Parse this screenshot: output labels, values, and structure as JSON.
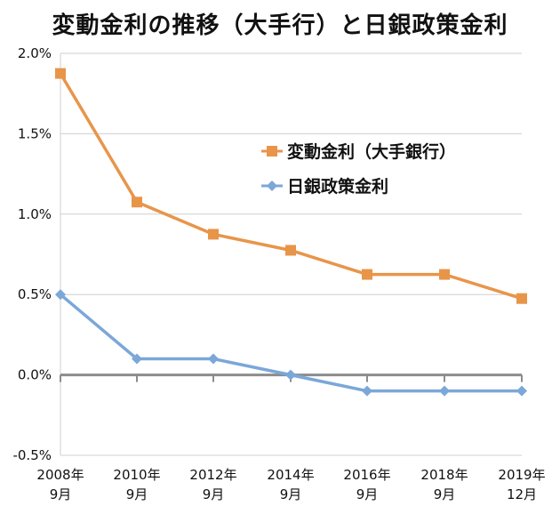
{
  "chart_data": {
    "type": "line",
    "title": "変動金利の推移（大手行）と日銀政策金利",
    "categories": [
      {
        "year": "2008年",
        "month": "9月"
      },
      {
        "year": "2010年",
        "month": "9月"
      },
      {
        "year": "2012年",
        "month": "9月"
      },
      {
        "year": "2014年",
        "month": "9月"
      },
      {
        "year": "2016年",
        "month": "9月"
      },
      {
        "year": "2018年",
        "month": "9月"
      },
      {
        "year": "2019年",
        "month": "12月"
      }
    ],
    "series": [
      {
        "name": "変動金利（大手銀行）",
        "values": [
          1.875,
          1.075,
          0.875,
          0.775,
          0.625,
          0.625,
          0.475
        ],
        "color": "#E8954A",
        "marker": "square"
      },
      {
        "name": "日銀政策金利",
        "values": [
          0.5,
          0.1,
          0.1,
          0.0,
          -0.1,
          -0.1,
          -0.1
        ],
        "color": "#7BA7D9",
        "marker": "diamond"
      }
    ],
    "ylim": [
      -0.5,
      2.0
    ],
    "yticks": [
      "2.0%",
      "1.5%",
      "1.0%",
      "0.5%",
      "0.0%",
      "-0.5%"
    ],
    "ytick_values": [
      2.0,
      1.5,
      1.0,
      0.5,
      0.0,
      -0.5
    ],
    "grid": true,
    "legend_position": "right"
  }
}
